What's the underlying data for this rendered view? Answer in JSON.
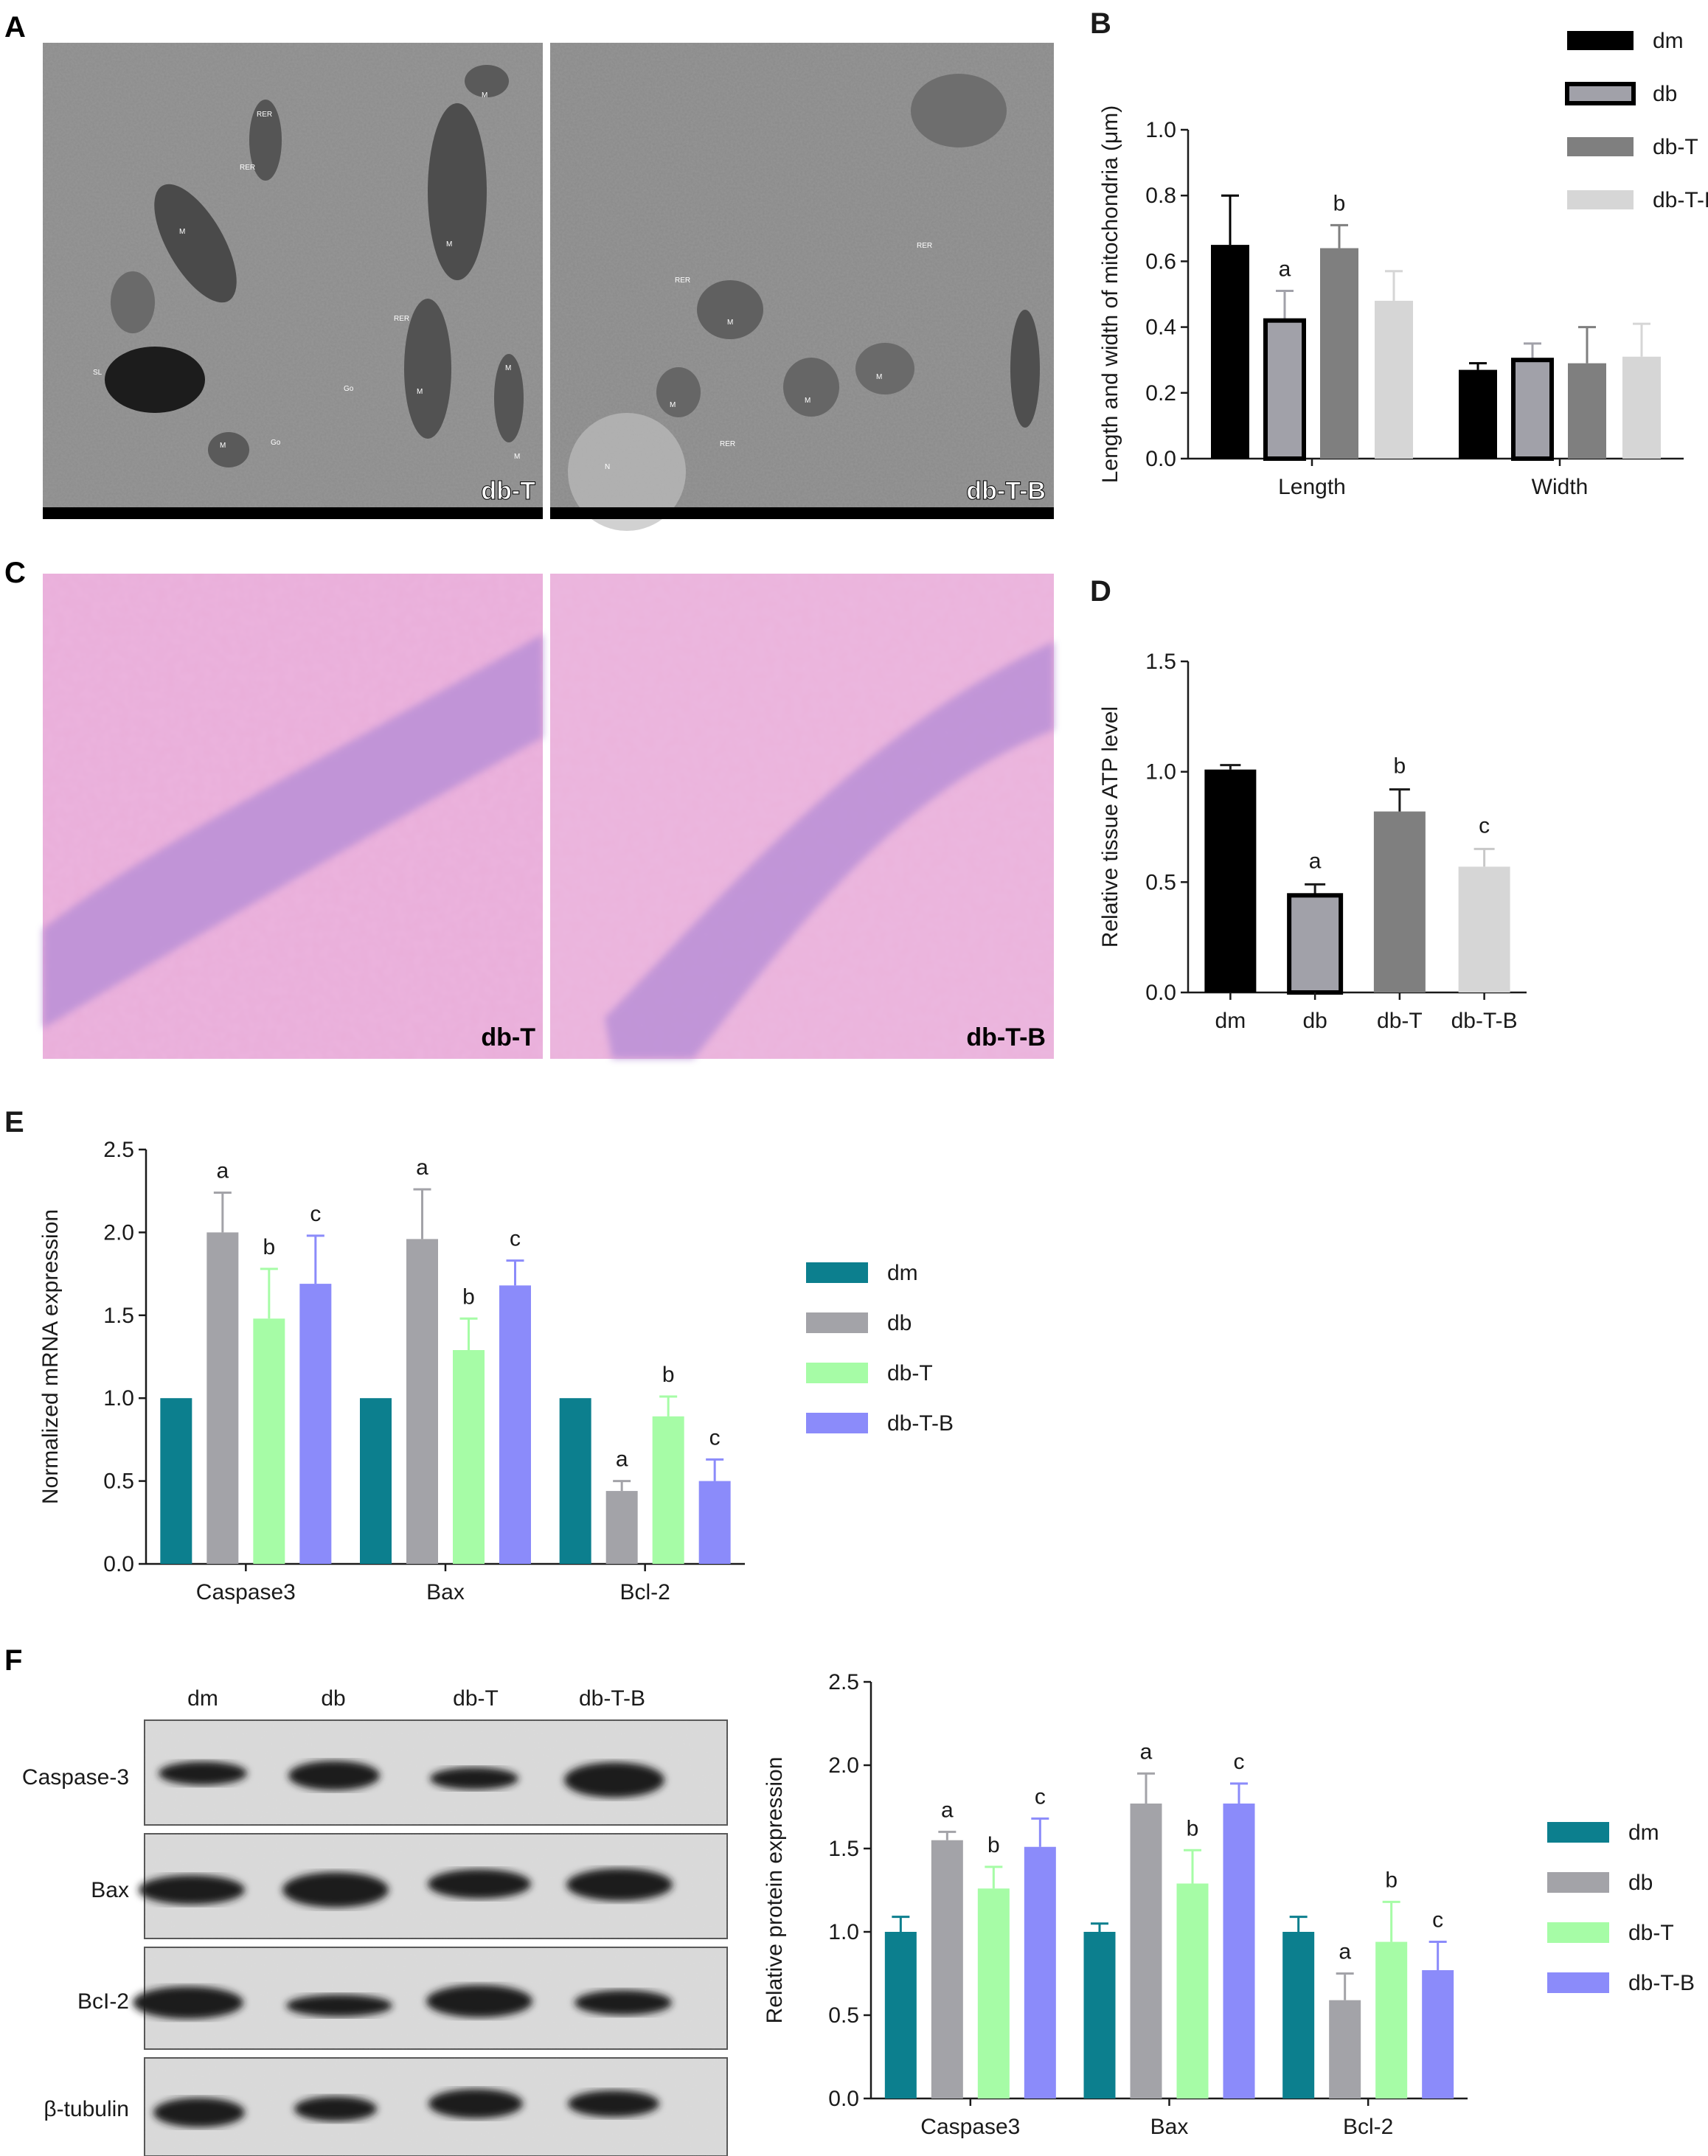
{
  "panels": {
    "A": {
      "letter": "A",
      "images": [
        {
          "label": "db-T",
          "organelle_labels": [
            "RER",
            "RER",
            "M",
            "M",
            "M",
            "SL",
            "Go",
            "Go",
            "RER",
            "M",
            "M",
            "M",
            "M"
          ]
        },
        {
          "label": "db-T-B",
          "organelle_labels": [
            "RER",
            "RER",
            "M",
            "M",
            "M",
            "M",
            "RER",
            "N"
          ]
        }
      ]
    },
    "C": {
      "letter": "C",
      "images": [
        {
          "label": "db-T"
        },
        {
          "label": "db-T-B"
        }
      ]
    },
    "F": {
      "letter": "F",
      "blot": {
        "lanes": [
          "dm",
          "db",
          "db-T",
          "db-T-B"
        ],
        "rows": [
          "Caspase-3",
          "Bax",
          "BcI-2",
          "β-tubulin"
        ]
      }
    }
  },
  "colors": {
    "bw": [
      "#000000",
      "#a1a1a9",
      "#7f7f7f",
      "#d6d6d6"
    ],
    "teal_set": [
      "#0c7f8e",
      "#a3a3a8",
      "#a6fca6",
      "#8b8bfa"
    ]
  },
  "chart_data": [
    {
      "id": "B",
      "letter": "B",
      "type": "bar",
      "title": "",
      "xlabel": "",
      "ylabel": "Length and width of mitochondria (μm)",
      "categories": [
        "Length",
        "Width"
      ],
      "ylim": [
        0,
        1.0
      ],
      "yticks": [
        "0.0",
        "0.2",
        "0.4",
        "0.6",
        "0.8",
        "1.0"
      ],
      "legend_position": "top-right",
      "series": [
        {
          "name": "dm",
          "color": "#000000",
          "outline": false,
          "values": [
            0.65,
            0.27
          ],
          "errors": [
            0.15,
            0.02
          ],
          "sig": [
            "",
            ""
          ]
        },
        {
          "name": "db",
          "color": "#a1a1a9",
          "outline": true,
          "values": [
            0.42,
            0.3
          ],
          "errors": [
            0.09,
            0.05
          ],
          "sig": [
            "a",
            ""
          ]
        },
        {
          "name": "db-T",
          "color": "#7f7f7f",
          "outline": false,
          "values": [
            0.64,
            0.29
          ],
          "errors": [
            0.07,
            0.11
          ],
          "sig": [
            "b",
            ""
          ]
        },
        {
          "name": "db-T-B",
          "color": "#d6d6d6",
          "outline": false,
          "values": [
            0.48,
            0.31
          ],
          "errors": [
            0.09,
            0.1
          ],
          "sig": [
            "",
            ""
          ]
        }
      ]
    },
    {
      "id": "D",
      "letter": "D",
      "type": "bar",
      "title": "",
      "xlabel": "",
      "ylabel": "Relative tissue ATP level",
      "categories": [
        "dm",
        "db",
        "db-T",
        "db-T-B"
      ],
      "ylim": [
        0,
        1.5
      ],
      "yticks": [
        "0.0",
        "0.5",
        "1.0",
        "1.5"
      ],
      "bars": [
        {
          "value": 1.01,
          "error": 0.02,
          "color": "#000000",
          "outline": false,
          "sig": ""
        },
        {
          "value": 0.44,
          "error": 0.05,
          "color": "#a1a1a9",
          "outline": true,
          "sig": "a"
        },
        {
          "value": 0.82,
          "error": 0.1,
          "color": "#7f7f7f",
          "outline": false,
          "sig": "b"
        },
        {
          "value": 0.57,
          "error": 0.08,
          "color": "#d6d6d6",
          "outline": false,
          "sig": "c"
        }
      ]
    },
    {
      "id": "E",
      "letter": "E",
      "type": "bar",
      "title": "",
      "xlabel": "",
      "ylabel": "Normalized mRNA expression",
      "categories": [
        "Caspase3",
        "Bax",
        "Bcl-2"
      ],
      "ylim": [
        0,
        2.5
      ],
      "yticks": [
        "0.0",
        "0.5",
        "1.0",
        "1.5",
        "2.0",
        "2.5"
      ],
      "legend_position": "right",
      "series": [
        {
          "name": "dm",
          "color": "#0c7f8e",
          "values": [
            1.0,
            1.0,
            1.0
          ],
          "errors": [
            0,
            0,
            0
          ],
          "sig": [
            "",
            "",
            ""
          ]
        },
        {
          "name": "db",
          "color": "#a3a3a8",
          "values": [
            2.0,
            1.96,
            0.44
          ],
          "errors": [
            0.24,
            0.3,
            0.06
          ],
          "sig": [
            "a",
            "a",
            "a"
          ]
        },
        {
          "name": "db-T",
          "color": "#a6fca6",
          "values": [
            1.48,
            1.29,
            0.89
          ],
          "errors": [
            0.3,
            0.19,
            0.12
          ],
          "sig": [
            "b",
            "b",
            "b"
          ]
        },
        {
          "name": "db-T-B",
          "color": "#8b8bfa",
          "values": [
            1.69,
            1.68,
            0.5
          ],
          "errors": [
            0.29,
            0.15,
            0.13
          ],
          "sig": [
            "c",
            "c",
            "c"
          ]
        }
      ]
    },
    {
      "id": "F",
      "letter": "",
      "type": "bar",
      "title": "",
      "xlabel": "",
      "ylabel": "Relative protein expression",
      "categories": [
        "Caspase3",
        "Bax",
        "Bcl-2"
      ],
      "ylim": [
        0,
        2.5
      ],
      "yticks": [
        "0.0",
        "0.5",
        "1.0",
        "1.5",
        "2.0",
        "2.5"
      ],
      "legend_position": "right",
      "series": [
        {
          "name": "dm",
          "color": "#0c7f8e",
          "values": [
            1.0,
            1.0,
            1.0
          ],
          "errors": [
            0.09,
            0.05,
            0.09
          ],
          "sig": [
            "",
            "",
            ""
          ]
        },
        {
          "name": "db",
          "color": "#a3a3a8",
          "values": [
            1.55,
            1.77,
            0.59
          ],
          "errors": [
            0.05,
            0.18,
            0.16
          ],
          "sig": [
            "a",
            "a",
            "a"
          ]
        },
        {
          "name": "db-T",
          "color": "#a6fca6",
          "values": [
            1.26,
            1.29,
            0.94
          ],
          "errors": [
            0.13,
            0.2,
            0.24
          ],
          "sig": [
            "b",
            "b",
            "b"
          ]
        },
        {
          "name": "db-T-B",
          "color": "#8b8bfa",
          "values": [
            1.51,
            1.77,
            0.77
          ],
          "errors": [
            0.17,
            0.12,
            0.17
          ],
          "sig": [
            "c",
            "c",
            "c"
          ]
        }
      ]
    }
  ]
}
